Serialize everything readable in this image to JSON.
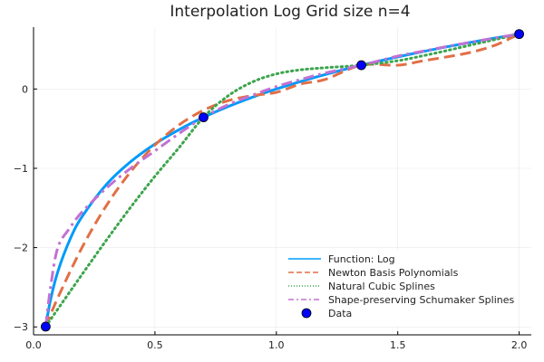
{
  "chart_data": {
    "type": "line",
    "title": "Interpolation Log Grid size n=4",
    "xlabel": "",
    "ylabel": "",
    "xlim": [
      0.0,
      2.05
    ],
    "ylim": [
      -3.1,
      0.78
    ],
    "x_ticks": [
      0.0,
      0.5,
      1.0,
      1.5,
      2.0
    ],
    "x_tick_labels": [
      "0.0",
      "0.5",
      "1.0",
      "1.5",
      "2.0"
    ],
    "y_ticks": [
      -3,
      -2,
      -1,
      0
    ],
    "y_tick_labels": [
      "−3",
      "−2",
      "−1",
      "0"
    ],
    "grid": true,
    "legend_position": "bottom-right",
    "series": [
      {
        "name": "Function: Log",
        "style": "solid",
        "color": "#009AF9",
        "x": [
          0.05,
          0.07,
          0.1,
          0.15,
          0.2,
          0.3,
          0.4,
          0.5,
          0.6,
          0.7,
          0.8,
          0.9,
          1.0,
          1.1,
          1.2,
          1.35,
          1.5,
          1.6,
          1.7,
          1.8,
          1.9,
          2.0
        ],
        "y": [
          -2.996,
          -2.659,
          -2.303,
          -1.897,
          -1.609,
          -1.204,
          -0.916,
          -0.693,
          -0.511,
          -0.357,
          -0.223,
          -0.105,
          0.0,
          0.095,
          0.182,
          0.3,
          0.405,
          0.47,
          0.531,
          0.588,
          0.642,
          0.693
        ]
      },
      {
        "name": "Newton Basis Polynomials",
        "style": "dashed",
        "color": "#E26F46",
        "x": [
          0.05,
          0.1,
          0.2,
          0.3,
          0.4,
          0.5,
          0.6,
          0.7,
          0.8,
          0.9,
          1.0,
          1.1,
          1.2,
          1.35,
          1.5,
          1.6,
          1.7,
          1.8,
          1.9,
          2.0
        ],
        "y": [
          -2.996,
          -2.632,
          -1.997,
          -1.47,
          -1.043,
          -0.706,
          -0.451,
          -0.268,
          -0.148,
          -0.083,
          -0.042,
          0.063,
          0.12,
          0.3,
          0.3,
          0.353,
          0.404,
          0.462,
          0.551,
          0.693
        ]
      },
      {
        "name": "Natural Cubic Splines",
        "style": "dotted",
        "color": "#3DA44D",
        "x": [
          0.05,
          0.1,
          0.2,
          0.3,
          0.4,
          0.5,
          0.6,
          0.7,
          0.8,
          0.9,
          1.0,
          1.1,
          1.2,
          1.35,
          1.5,
          1.6,
          1.7,
          1.8,
          1.9,
          2.0
        ],
        "y": [
          -2.996,
          -2.775,
          -2.337,
          -1.906,
          -1.491,
          -1.1,
          -0.736,
          -0.357,
          -0.089,
          0.087,
          0.19,
          0.242,
          0.268,
          0.3,
          0.357,
          0.417,
          0.483,
          0.554,
          0.623,
          0.693
        ]
      },
      {
        "name": "Shape-preserving Schumaker Splines",
        "style": "dashdot",
        "color": "#C271D2",
        "x": [
          0.05,
          0.07,
          0.1,
          0.15,
          0.2,
          0.3,
          0.4,
          0.5,
          0.6,
          0.7,
          0.8,
          0.9,
          1.0,
          1.1,
          1.2,
          1.35,
          1.5,
          1.6,
          1.7,
          1.8,
          1.9,
          2.0
        ],
        "y": [
          -2.996,
          -2.5,
          -2.0,
          -1.75,
          -1.55,
          -1.25,
          -1.0,
          -0.78,
          -0.56,
          -0.357,
          -0.2,
          -0.08,
          0.03,
          0.12,
          0.2,
          0.3,
          0.415,
          0.475,
          0.535,
          0.59,
          0.643,
          0.693
        ]
      },
      {
        "name": "Data",
        "style": "markers",
        "color": "#0000FF",
        "x": [
          0.05,
          0.7,
          1.35,
          2.0
        ],
        "y": [
          -2.996,
          -0.357,
          0.3,
          0.693
        ]
      }
    ]
  }
}
